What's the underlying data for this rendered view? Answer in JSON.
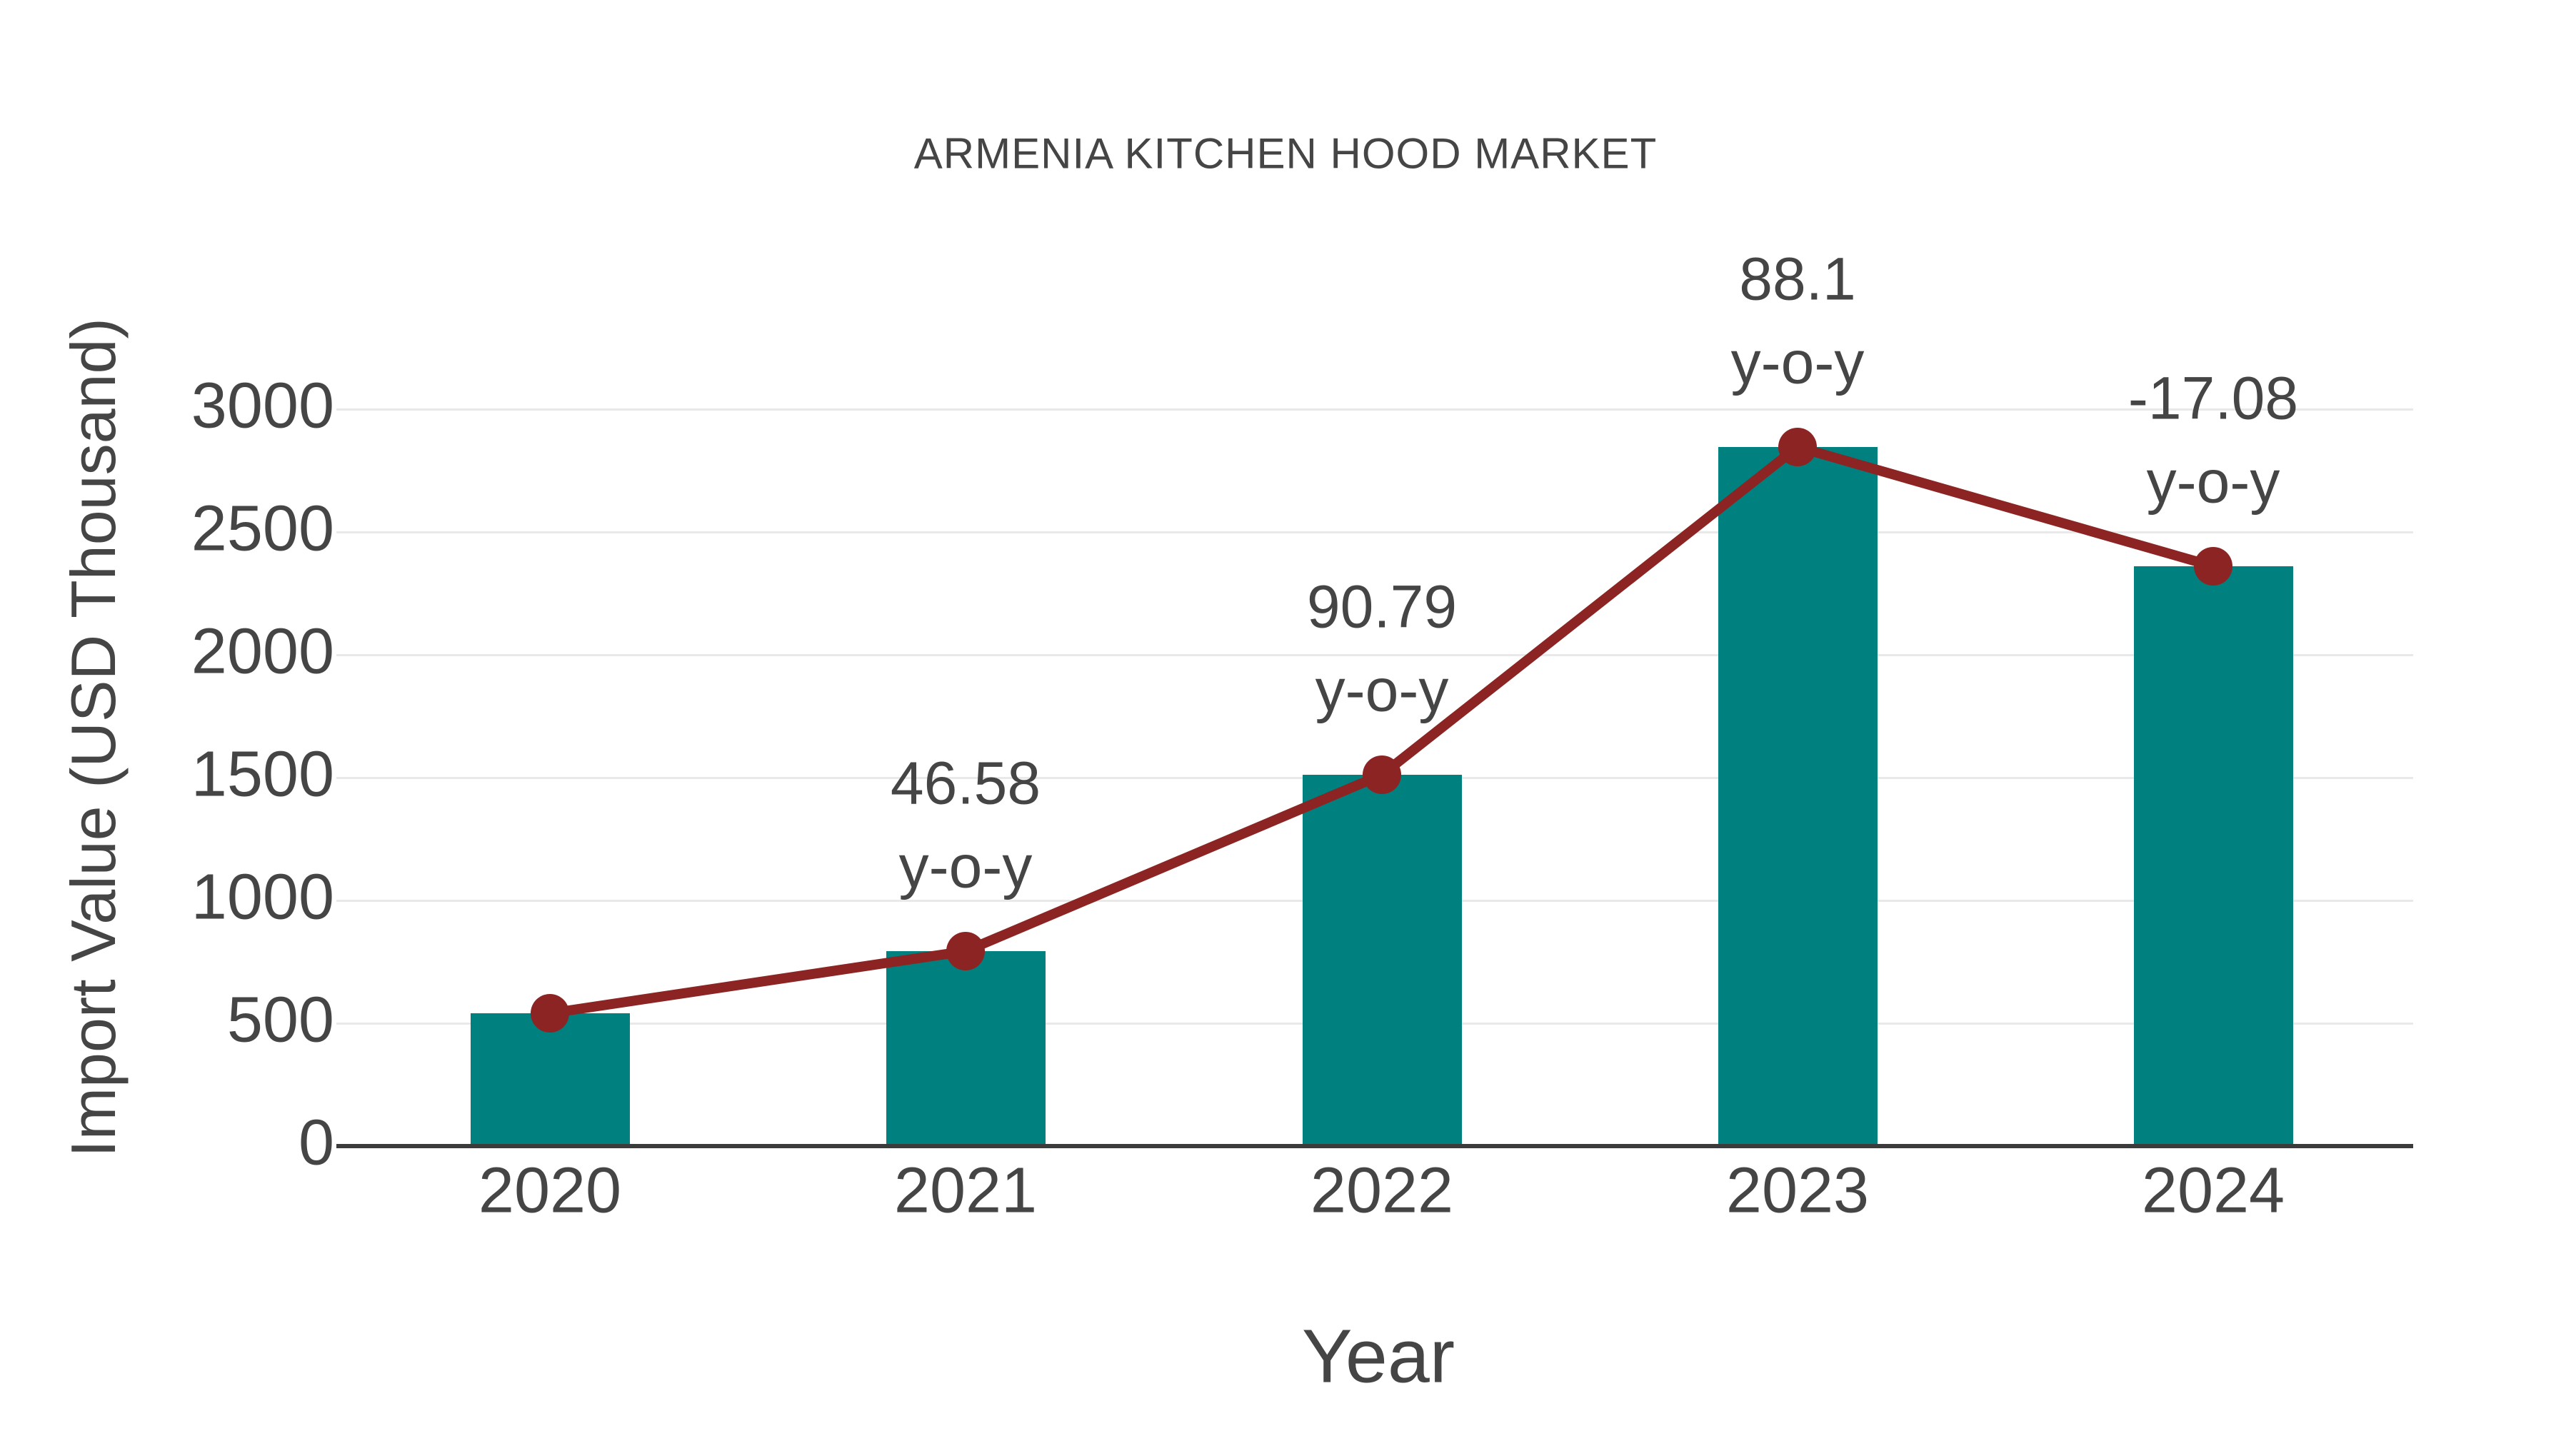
{
  "chart_data": {
    "type": "bar",
    "title": "ARMENIA KITCHEN HOOD MARKET",
    "xlabel": "Year",
    "ylabel": "Import Value (USD Thousand)",
    "categories": [
      "2020",
      "2021",
      "2022",
      "2023",
      "2024"
    ],
    "series": [
      {
        "name": "import-value-bars",
        "type": "bar",
        "values": [
          541,
          793,
          1513,
          2846,
          2360
        ]
      },
      {
        "name": "import-value-trend-line",
        "type": "line",
        "values": [
          541,
          793,
          1513,
          2846,
          2360
        ]
      }
    ],
    "annotations": [
      {
        "category": "2021",
        "value_label": "46.58",
        "unit_label": "y-o-y"
      },
      {
        "category": "2022",
        "value_label": "90.79",
        "unit_label": "y-o-y"
      },
      {
        "category": "2023",
        "value_label": "88.1",
        "unit_label": "y-o-y"
      },
      {
        "category": "2024",
        "value_label": "-17.08",
        "unit_label": "y-o-y"
      }
    ],
    "yticks": [
      0,
      500,
      1000,
      1500,
      2000,
      2500,
      3000
    ],
    "ylim": [
      0,
      3100
    ],
    "grid": "horizontal",
    "legend": "none"
  },
  "colors": {
    "bar": "#018080",
    "line": "#8b2422",
    "marker": "#8b2422",
    "text": "#454545",
    "gridline": "#e9e9e9",
    "axis_line": "#3b3b3b",
    "background": "#ffffff"
  }
}
